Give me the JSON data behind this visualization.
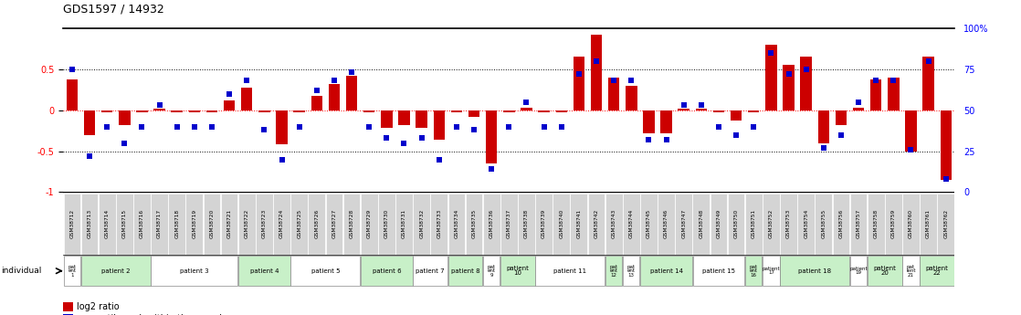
{
  "title": "GDS1597 / 14932",
  "samples": [
    "GSM38712",
    "GSM38713",
    "GSM38714",
    "GSM38715",
    "GSM38716",
    "GSM38717",
    "GSM38718",
    "GSM38719",
    "GSM38720",
    "GSM38721",
    "GSM38722",
    "GSM38723",
    "GSM38724",
    "GSM38725",
    "GSM38726",
    "GSM38727",
    "GSM38728",
    "GSM38729",
    "GSM38730",
    "GSM38731",
    "GSM38732",
    "GSM38733",
    "GSM38734",
    "GSM38735",
    "GSM38736",
    "GSM38737",
    "GSM38738",
    "GSM38739",
    "GSM38740",
    "GSM38741",
    "GSM38742",
    "GSM38743",
    "GSM38744",
    "GSM38745",
    "GSM38746",
    "GSM38747",
    "GSM38748",
    "GSM38749",
    "GSM38750",
    "GSM38751",
    "GSM38752",
    "GSM38753",
    "GSM38754",
    "GSM38755",
    "GSM38756",
    "GSM38757",
    "GSM38758",
    "GSM38759",
    "GSM38760",
    "GSM38761",
    "GSM38762"
  ],
  "log2_ratio": [
    0.38,
    -0.3,
    -0.02,
    -0.18,
    -0.02,
    0.02,
    -0.02,
    -0.02,
    -0.02,
    0.12,
    0.28,
    -0.02,
    -0.42,
    -0.02,
    0.18,
    0.32,
    0.42,
    -0.02,
    -0.22,
    -0.18,
    -0.22,
    -0.36,
    -0.02,
    -0.08,
    -0.65,
    -0.02,
    0.03,
    -0.02,
    -0.02,
    0.65,
    0.92,
    0.4,
    0.3,
    -0.28,
    -0.28,
    0.02,
    0.02,
    -0.02,
    -0.12,
    -0.02,
    0.8,
    0.55,
    0.65,
    -0.4,
    -0.18,
    0.03,
    0.38,
    0.4,
    -0.5,
    0.65,
    -0.85
  ],
  "percentile": [
    75,
    22,
    40,
    30,
    40,
    53,
    40,
    40,
    40,
    60,
    68,
    38,
    20,
    40,
    62,
    68,
    73,
    40,
    33,
    30,
    33,
    20,
    40,
    38,
    14,
    40,
    55,
    40,
    40,
    72,
    80,
    68,
    68,
    32,
    32,
    53,
    53,
    40,
    35,
    40,
    85,
    72,
    75,
    27,
    35,
    55,
    68,
    68,
    26,
    80,
    8
  ],
  "patients": [
    {
      "label": "pat\nent\n1",
      "start": 0,
      "end": 0
    },
    {
      "label": "patient 2",
      "start": 1,
      "end": 4
    },
    {
      "label": "patient 3",
      "start": 5,
      "end": 9
    },
    {
      "label": "patient 4",
      "start": 10,
      "end": 12
    },
    {
      "label": "patient 5",
      "start": 13,
      "end": 16
    },
    {
      "label": "patient 6",
      "start": 17,
      "end": 19
    },
    {
      "label": "patient 7",
      "start": 20,
      "end": 21
    },
    {
      "label": "patient 8",
      "start": 22,
      "end": 23
    },
    {
      "label": "pat\nent\n9",
      "start": 24,
      "end": 24
    },
    {
      "label": "patient\n10",
      "start": 25,
      "end": 26
    },
    {
      "label": "patient 11",
      "start": 27,
      "end": 30
    },
    {
      "label": "pat\nent\n12",
      "start": 31,
      "end": 31
    },
    {
      "label": "pat\nent\n13",
      "start": 32,
      "end": 32
    },
    {
      "label": "patient 14",
      "start": 33,
      "end": 35
    },
    {
      "label": "patient 15",
      "start": 36,
      "end": 38
    },
    {
      "label": "pat\nent\n16",
      "start": 39,
      "end": 39
    },
    {
      "label": "patient\n17",
      "start": 40,
      "end": 40
    },
    {
      "label": "patient 18",
      "start": 41,
      "end": 44
    },
    {
      "label": "patient\n19",
      "start": 45,
      "end": 45
    },
    {
      "label": "patient\n20",
      "start": 46,
      "end": 47
    },
    {
      "label": "pat\nient\n21",
      "start": 48,
      "end": 48
    },
    {
      "label": "patient\n22",
      "start": 49,
      "end": 50
    }
  ],
  "bar_color": "#cc0000",
  "dot_color": "#0000cc",
  "ylim_left": [
    -1.0,
    1.0
  ],
  "ylim_right": [
    0,
    100
  ],
  "yticks_left": [
    -1.0,
    -0.5,
    0.0,
    0.5
  ],
  "ytick_labels_left": [
    "-1",
    "-0.5",
    "0",
    "0.5"
  ],
  "yticks_right": [
    0,
    25,
    50,
    75,
    100
  ],
  "ytick_labels_right": [
    "0",
    "25",
    "50",
    "75",
    "100%"
  ],
  "bg_color": "#ffffff",
  "sample_box_color": "#d4d4d4",
  "pat_colors": [
    "#ffffff",
    "#c8f0c8"
  ]
}
